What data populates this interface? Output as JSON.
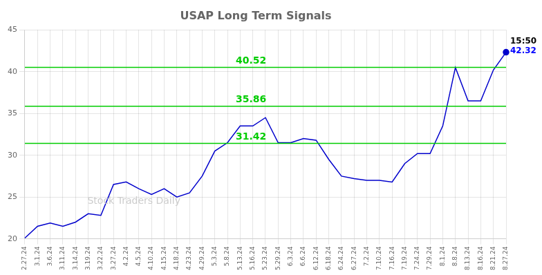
{
  "chart_data": {
    "type": "line",
    "title": "USAP Long Term Signals",
    "categories": [
      "2.27.24",
      "3.1.24",
      "3.6.24",
      "3.11.24",
      "3.14.24",
      "3.19.24",
      "3.22.24",
      "3.27.24",
      "4.2.24",
      "4.5.24",
      "4.10.24",
      "4.15.24",
      "4.18.24",
      "4.23.24",
      "4.29.24",
      "5.3.24",
      "5.8.24",
      "5.13.24",
      "5.16.24",
      "5.23.24",
      "5.29.24",
      "6.3.24",
      "6.6.24",
      "6.12.24",
      "6.18.24",
      "6.24.24",
      "6.27.24",
      "7.2.24",
      "7.10.24",
      "7.16.24",
      "7.19.24",
      "7.24.24",
      "7.29.24",
      "8.1.24",
      "8.8.24",
      "8.13.24",
      "8.16.24",
      "8.21.24",
      "8.27.24"
    ],
    "values": [
      20.1,
      21.5,
      21.9,
      21.5,
      22.0,
      23.0,
      22.8,
      26.5,
      26.8,
      26.0,
      25.3,
      26.0,
      25.0,
      25.5,
      27.5,
      30.5,
      31.5,
      33.5,
      33.5,
      34.5,
      31.5,
      31.5,
      32.0,
      31.8,
      29.5,
      27.5,
      27.2,
      27.0,
      27.0,
      26.8,
      29.0,
      30.2,
      30.2,
      33.5,
      40.5,
      36.5,
      36.5,
      40.2,
      42.32
    ],
    "color": "#0000cc",
    "hlines": [
      {
        "value": 40.52,
        "color": "#00cc00"
      },
      {
        "value": 35.86,
        "color": "#00cc00"
      },
      {
        "value": 31.42,
        "color": "#00cc00"
      }
    ],
    "annotations": [
      {
        "text": "15:50",
        "color": "black"
      },
      {
        "text": "42.32",
        "color": "blue"
      }
    ],
    "watermark": "Stock Traders Daily",
    "ylim": [
      20,
      45
    ],
    "yticks": [
      20,
      25,
      30,
      35,
      40,
      45
    ],
    "grid": true
  }
}
